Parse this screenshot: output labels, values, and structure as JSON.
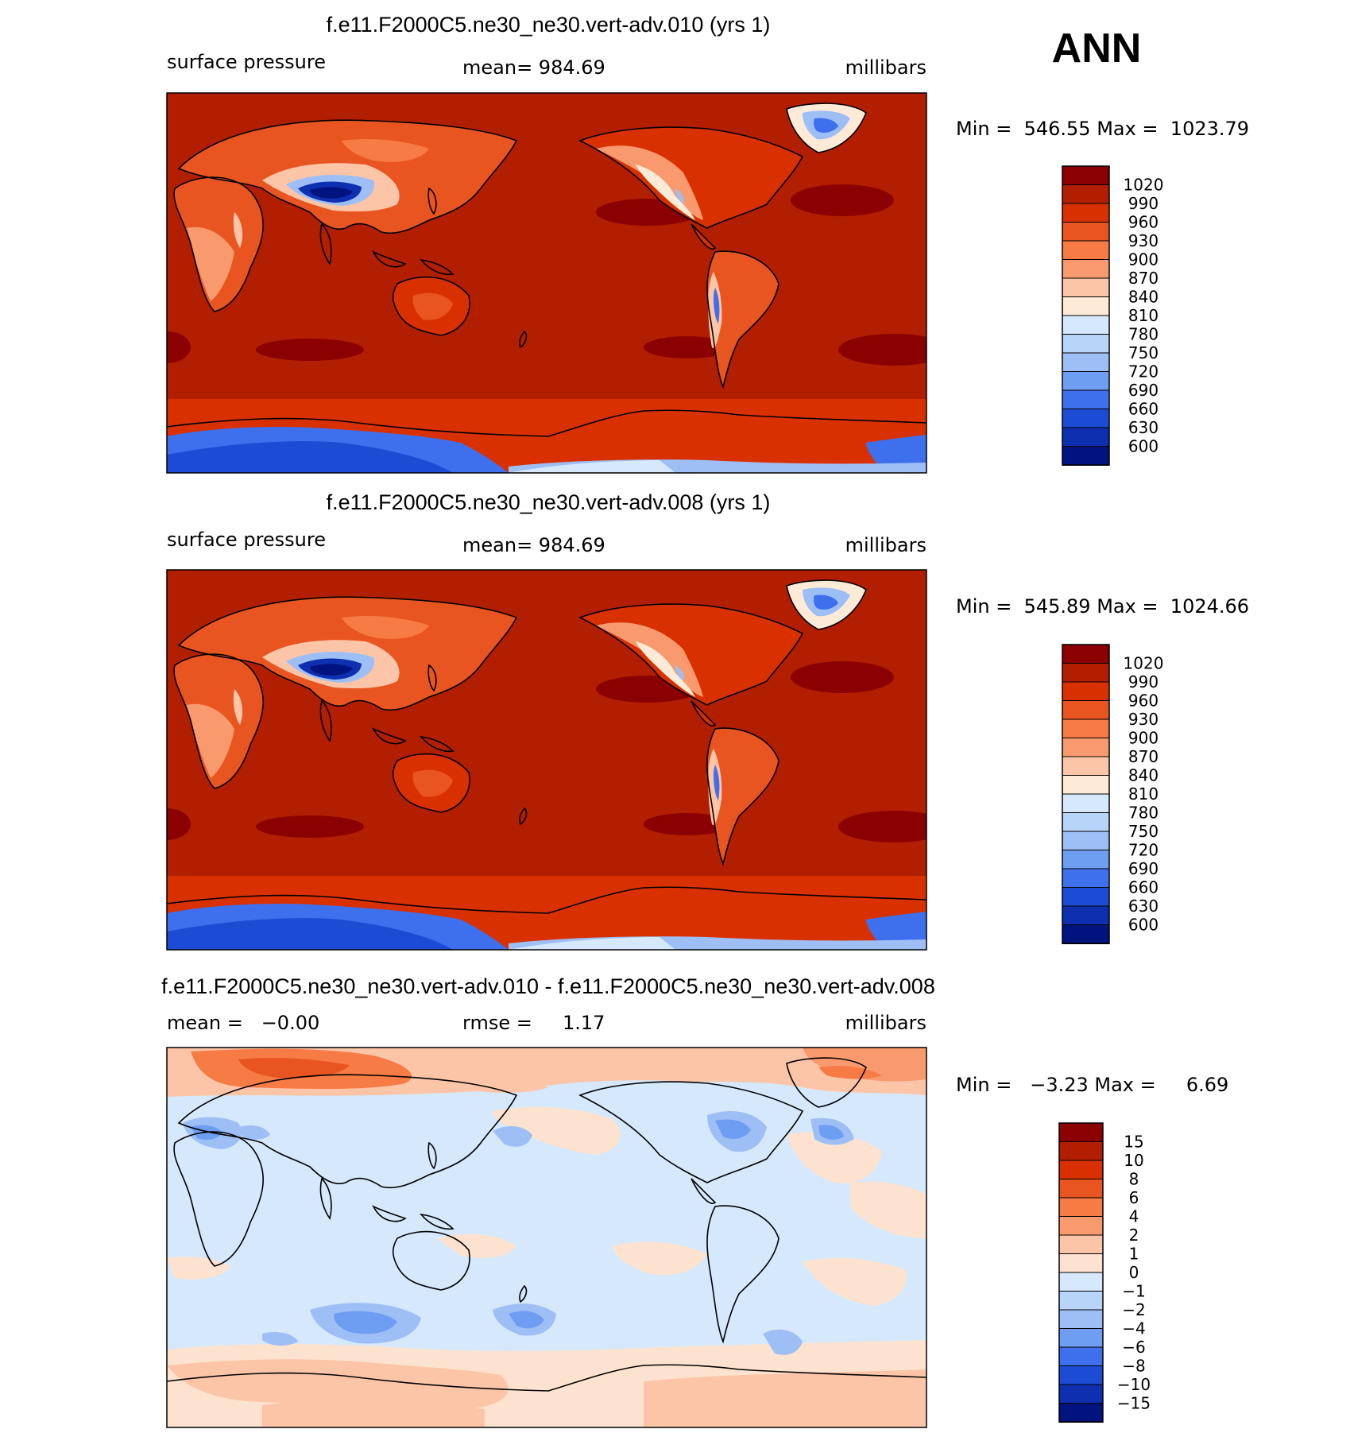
{
  "corner_label": "ANN",
  "colors": {
    "abs_scale": [
      "#8b0000",
      "#b21f00",
      "#d93000",
      "#e85520",
      "#f77b45",
      "#f89a6e",
      "#fcc5a8",
      "#fdebd8",
      "#d6e8fb",
      "#b8d4f8",
      "#9ebff6",
      "#6e9ef2",
      "#3e70ed",
      "#1c4cd4",
      "#0d2fb0",
      "#00137f"
    ],
    "diff_scale": [
      "#8b0000",
      "#b21f00",
      "#d93000",
      "#e85520",
      "#f77b45",
      "#f89a6e",
      "#fcc5a8",
      "#fde3cf",
      "#d6e8fb",
      "#b8d4f8",
      "#9ebff6",
      "#6e9ef2",
      "#3e70ed",
      "#1c4cd4",
      "#0d2fb0",
      "#00137f"
    ]
  },
  "chart_data": [
    {
      "type": "heatmap",
      "title": "f.e11.F2000C5.ne30_ne30.vert-adv.010 (yrs 1)",
      "left_label": "surface pressure",
      "center_label": "mean= 984.69",
      "right_label": "millibars",
      "stats_label": "Min =  546.55 Max =  1023.79",
      "mean": 984.69,
      "min": 546.55,
      "max": 1023.79,
      "units": "millibars",
      "colorbar_levels": [
        "1020",
        "990",
        "960",
        "930",
        "900",
        "870",
        "840",
        "810",
        "780",
        "750",
        "720",
        "690",
        "660",
        "630",
        "600"
      ]
    },
    {
      "type": "heatmap",
      "title": "f.e11.F2000C5.ne30_ne30.vert-adv.008 (yrs 1)",
      "left_label": "surface pressure",
      "center_label": "mean= 984.69",
      "right_label": "millibars",
      "stats_label": "Min =  545.89 Max =  1024.66",
      "mean": 984.69,
      "min": 545.89,
      "max": 1024.66,
      "units": "millibars",
      "colorbar_levels": [
        "1020",
        "990",
        "960",
        "930",
        "900",
        "870",
        "840",
        "810",
        "780",
        "750",
        "720",
        "690",
        "660",
        "630",
        "600"
      ]
    },
    {
      "type": "heatmap",
      "title": "f.e11.F2000C5.ne30_ne30.vert-adv.010 - f.e11.F2000C5.ne30_ne30.vert-adv.008",
      "left_label": "mean =   −0.00",
      "center_label": "rmse =     1.17",
      "right_label": "millibars",
      "stats_label": "Min =   −3.23 Max =     6.69",
      "mean": -0.0,
      "rmse": 1.17,
      "min": -3.23,
      "max": 6.69,
      "units": "millibars",
      "colorbar_levels": [
        "15",
        "10",
        "8",
        "6",
        "4",
        "2",
        "1",
        "0",
        "−1",
        "−2",
        "−4",
        "−6",
        "−8",
        "−10",
        "−15"
      ]
    }
  ]
}
